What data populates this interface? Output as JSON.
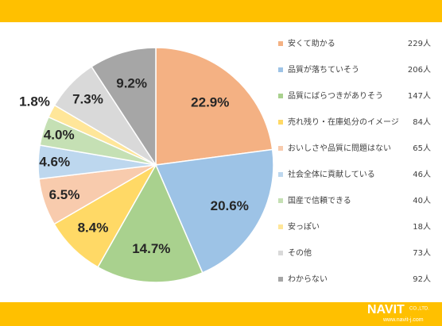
{
  "chart_data": {
    "type": "pie",
    "categories": [
      "安くて助かる",
      "品質が落ちていそう",
      "品質にばらつきがありそう",
      "売れ残り・在庫処分のイメージ",
      "おいしさや品質に問題はない",
      "社会全体に貢献している",
      "国産で信頼できる",
      "安っぽい",
      "その他",
      "わからない"
    ],
    "values": [
      22.9,
      20.6,
      14.7,
      8.4,
      6.5,
      4.6,
      4.0,
      1.8,
      7.3,
      9.2
    ],
    "value_labels": [
      "22.9%",
      "20.6%",
      "14.7%",
      "8.4%",
      "6.5%",
      "4.6%",
      "4.0%",
      "1.8%",
      "7.3%",
      "9.2%"
    ],
    "counts": [
      "229人",
      "206人",
      "147人",
      "84人",
      "65人",
      "46人",
      "40人",
      "18人",
      "73人",
      "92人"
    ],
    "colors": [
      "#f4b183",
      "#9dc3e6",
      "#a9d18e",
      "#ffd966",
      "#f8cbad",
      "#bdd7ee",
      "#c5e0b4",
      "#ffe699",
      "#d9d9d9",
      "#a6a6a6"
    ]
  },
  "footer": {
    "brand": "NAVIT",
    "suffix": "CO.,LTD.",
    "url": "www.navit-j.com"
  }
}
